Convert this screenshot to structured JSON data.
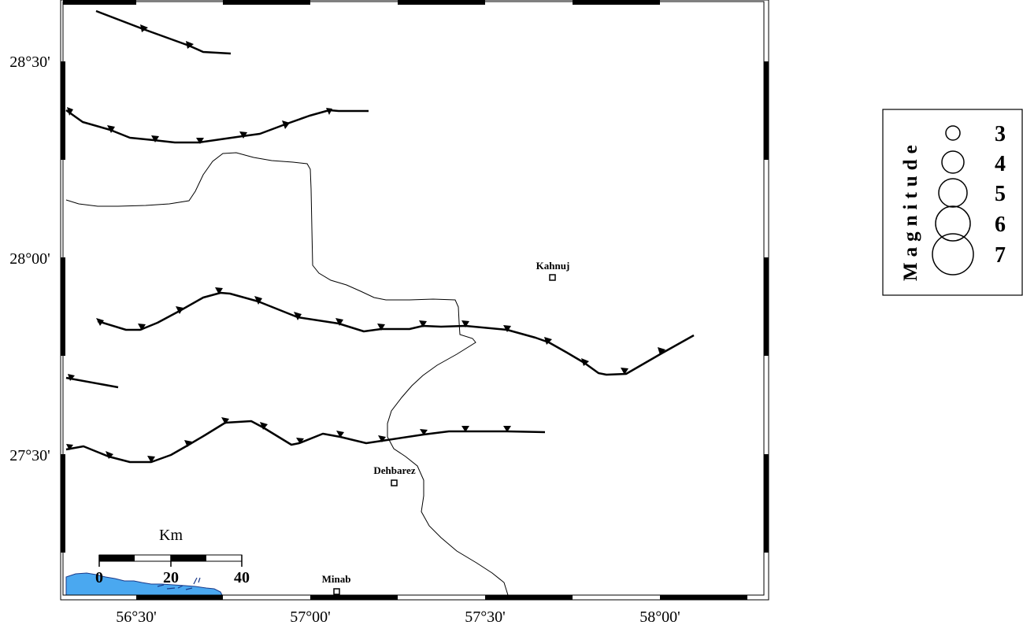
{
  "map": {
    "lat_labels": [
      "28°30'",
      "28°00'",
      "27°30'"
    ],
    "lon_labels": [
      "56°30'",
      "57°00'",
      "57°30'",
      "58°00'"
    ]
  },
  "cities": {
    "kahnuj": "Kahnuj",
    "dehbarez": "Dehbarez",
    "minab": "Minab"
  },
  "scale_bar": {
    "unit": "Km",
    "ticks": [
      "0",
      "20",
      "40"
    ]
  },
  "legend": {
    "title": "Magnitude",
    "magnitudes": [
      "3",
      "4",
      "5",
      "6",
      "7"
    ]
  },
  "colors": {
    "sea": "#4aa8f0",
    "fault": "#000000",
    "boundary": "#000000"
  }
}
